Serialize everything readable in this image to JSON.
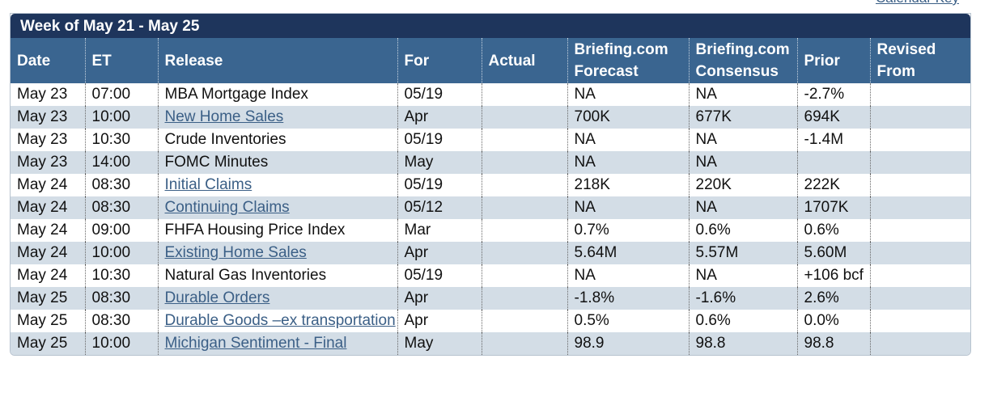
{
  "calendar_key": "Calendar Key",
  "table": {
    "title": "Week of May 21 - May 25",
    "headers": {
      "date": "Date",
      "et": "ET",
      "release": "Release",
      "for": "For",
      "actual": "Actual",
      "forecast": "Briefing.com Forecast",
      "consensus": "Briefing.com Consensus",
      "prior": "Prior",
      "revised": "Revised From"
    },
    "rows": [
      {
        "date": "May 23",
        "et": "07:00",
        "release": "MBA Mortgage Index",
        "for": "05/19",
        "forecast": "NA",
        "consensus": "NA",
        "prior": "-2.7%",
        "link": false
      },
      {
        "date": "May 23",
        "et": "10:00",
        "release": "New Home Sales",
        "for": "Apr",
        "forecast": "700K",
        "consensus": "677K",
        "prior": "694K",
        "link": true
      },
      {
        "date": "May 23",
        "et": "10:30",
        "release": "Crude Inventories",
        "for": "05/19",
        "forecast": "NA",
        "consensus": "NA",
        "prior": "-1.4M",
        "link": false
      },
      {
        "date": "May 23",
        "et": "14:00",
        "release": "FOMC Minutes",
        "for": "May",
        "forecast": "NA",
        "consensus": "NA",
        "link": false
      },
      {
        "date": "May 24",
        "et": "08:30",
        "release": "Initial Claims",
        "for": "05/19",
        "forecast": "218K",
        "consensus": "220K",
        "prior": "222K",
        "link": true
      },
      {
        "date": "May 24",
        "et": "08:30",
        "release": "Continuing Claims",
        "for": "05/12",
        "forecast": "NA",
        "consensus": "NA",
        "prior": "1707K",
        "link": true
      },
      {
        "date": "May 24",
        "et": "09:00",
        "release": "FHFA Housing Price Index",
        "for": "Mar",
        "forecast": "0.7%",
        "consensus": "0.6%",
        "prior": "0.6%",
        "link": false
      },
      {
        "date": "May 24",
        "et": "10:00",
        "release": "Existing Home Sales",
        "for": "Apr",
        "forecast": "5.64M",
        "consensus": "5.57M",
        "prior": "5.60M",
        "link": true
      },
      {
        "date": "May 24",
        "et": "10:30",
        "release": "Natural Gas Inventories",
        "for": "05/19",
        "forecast": "NA",
        "consensus": "NA",
        "prior": "+106 bcf",
        "link": false
      },
      {
        "date": "May 25",
        "et": "08:30",
        "release": "Durable Orders",
        "for": "Apr",
        "forecast": "-1.8%",
        "consensus": "-1.6%",
        "prior": "2.6%",
        "link": true
      },
      {
        "date": "May 25",
        "et": "08:30",
        "release": "Durable Goods –ex transportation",
        "for": "Apr",
        "forecast": "0.5%",
        "consensus": "0.6%",
        "prior": "0.0%",
        "link": true
      },
      {
        "date": "May 25",
        "et": "10:00",
        "release": "Michigan Sentiment - Final",
        "for": "May",
        "forecast": "98.9",
        "consensus": "98.8",
        "prior": "98.8",
        "link": true
      }
    ]
  }
}
